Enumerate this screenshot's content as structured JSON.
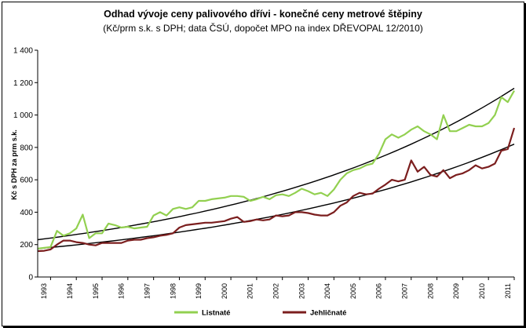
{
  "chart_data": {
    "type": "line",
    "title": "Odhad vývoje ceny palivového dřívi - konečné ceny metrové štěpiny",
    "subtitle": "(Kč/prm s.k. s DPH; data ČSÚ, dopočet MPO na index DŘEVOPAL 12/2010)",
    "xlabel": "",
    "ylabel": "Kč s DPH za prm s.k.",
    "ylim": [
      0,
      1400
    ],
    "y_ticks": [
      "0",
      "200",
      "400",
      "600",
      "800",
      "1 000",
      "1 200",
      "1 400"
    ],
    "x_range": [
      1992.75,
      2011.25
    ],
    "x_ticks": [
      "1993",
      "1994",
      "1995",
      "1996",
      "1997",
      "1998",
      "1999",
      "2000",
      "2001",
      "2002",
      "2003",
      "2004",
      "2005",
      "2006",
      "2007",
      "2008",
      "2009",
      "2010",
      "2011"
    ],
    "grid": false,
    "legend_position": "bottom",
    "series": [
      {
        "name": "Listnaté",
        "color": "#92D050",
        "x": [
          1992.75,
          1993.0,
          1993.25,
          1993.5,
          1993.75,
          1994.0,
          1994.25,
          1994.5,
          1994.75,
          1995.0,
          1995.25,
          1995.5,
          1995.75,
          1996.0,
          1996.25,
          1996.5,
          1996.75,
          1997.0,
          1997.25,
          1997.5,
          1997.75,
          1998.0,
          1998.25,
          1998.5,
          1998.75,
          1999.0,
          1999.25,
          1999.5,
          1999.75,
          2000.0,
          2000.25,
          2000.5,
          2000.75,
          2001.0,
          2001.25,
          2001.5,
          2001.75,
          2002.0,
          2002.25,
          2002.5,
          2002.75,
          2003.0,
          2003.25,
          2003.5,
          2003.75,
          2004.0,
          2004.25,
          2004.5,
          2004.75,
          2005.0,
          2005.25,
          2005.5,
          2005.75,
          2006.0,
          2006.25,
          2006.5,
          2006.75,
          2007.0,
          2007.25,
          2007.5,
          2007.75,
          2008.0,
          2008.25,
          2008.5,
          2008.75,
          2009.0,
          2009.25,
          2009.5,
          2009.75,
          2010.0,
          2010.25,
          2010.5,
          2010.75,
          2011.0,
          2011.25
        ],
        "values": [
          175,
          180,
          185,
          285,
          255,
          270,
          300,
          385,
          240,
          270,
          270,
          330,
          320,
          305,
          310,
          300,
          305,
          310,
          380,
          400,
          380,
          420,
          430,
          420,
          430,
          470,
          470,
          480,
          485,
          490,
          500,
          500,
          495,
          470,
          480,
          495,
          480,
          505,
          510,
          500,
          520,
          545,
          530,
          510,
          520,
          500,
          540,
          600,
          640,
          660,
          670,
          690,
          700,
          760,
          850,
          880,
          860,
          880,
          910,
          930,
          900,
          880,
          850,
          1000,
          900,
          900,
          920,
          940,
          930,
          930,
          950,
          1000,
          1110,
          1080,
          1150
        ]
      },
      {
        "name": "Jehličnaté",
        "color": "#7B1E1E",
        "x": [
          1992.75,
          1993.0,
          1993.25,
          1993.5,
          1993.75,
          1994.0,
          1994.25,
          1994.5,
          1994.75,
          1995.0,
          1995.25,
          1995.5,
          1995.75,
          1996.0,
          1996.25,
          1996.5,
          1996.75,
          1997.0,
          1997.25,
          1997.5,
          1997.75,
          1998.0,
          1998.25,
          1998.5,
          1998.75,
          1999.0,
          1999.25,
          1999.5,
          1999.75,
          2000.0,
          2000.25,
          2000.5,
          2000.75,
          2001.0,
          2001.25,
          2001.5,
          2001.75,
          2002.0,
          2002.25,
          2002.5,
          2002.75,
          2003.0,
          2003.25,
          2003.5,
          2003.75,
          2004.0,
          2004.25,
          2004.5,
          2004.75,
          2005.0,
          2005.25,
          2005.5,
          2005.75,
          2006.0,
          2006.25,
          2006.5,
          2006.75,
          2007.0,
          2007.25,
          2007.5,
          2007.75,
          2008.0,
          2008.25,
          2008.5,
          2008.75,
          2009.0,
          2009.25,
          2009.5,
          2009.75,
          2010.0,
          2010.25,
          2010.5,
          2010.75,
          2011.0,
          2011.25
        ],
        "values": [
          160,
          162,
          170,
          200,
          225,
          225,
          215,
          210,
          200,
          195,
          210,
          210,
          210,
          210,
          225,
          230,
          230,
          240,
          245,
          255,
          260,
          270,
          305,
          320,
          325,
          330,
          335,
          335,
          340,
          345,
          360,
          370,
          340,
          345,
          355,
          350,
          355,
          380,
          375,
          380,
          400,
          400,
          395,
          385,
          380,
          380,
          400,
          440,
          460,
          500,
          520,
          510,
          515,
          545,
          570,
          600,
          590,
          600,
          720,
          650,
          680,
          630,
          620,
          660,
          610,
          630,
          640,
          660,
          690,
          670,
          680,
          700,
          780,
          790,
          920
        ]
      }
    ],
    "trendlines": [
      {
        "series": "Listnaté",
        "type": "exponential",
        "color": "#000000",
        "start": 230,
        "end": 1165
      },
      {
        "series": "Jehličnaté",
        "type": "exponential",
        "color": "#000000",
        "start": 175,
        "end": 820
      }
    ]
  }
}
